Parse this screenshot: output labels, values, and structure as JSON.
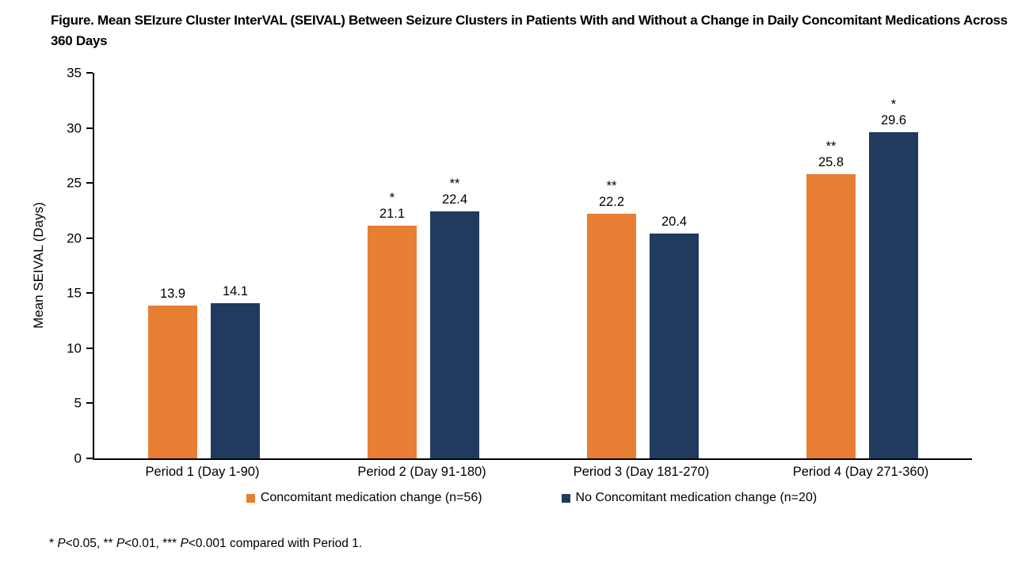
{
  "chart_data": {
    "type": "bar",
    "title": "Figure. Mean SEIzure Cluster InterVAL (SEIVAL) Between Seizure Clusters in Patients With and Without a Change in Daily Concomitant Medications Across 360 Days",
    "categories": [
      "Period 1 (Day 1-90)",
      "Period 2 (Day 91-180)",
      "Period 3 (Day 181-270)",
      "Period 4 (Day 271-360)"
    ],
    "series": [
      {
        "name": "Concomitant medication change (n=56)",
        "color": "#E87E33",
        "values": [
          13.9,
          21.1,
          22.2,
          25.8
        ],
        "annotations": [
          "",
          "*",
          "**",
          "**"
        ]
      },
      {
        "name": "No Concomitant medication change (n=20)",
        "color": "#213A5E",
        "values": [
          14.1,
          22.4,
          20.4,
          29.6
        ],
        "annotations": [
          "",
          "**",
          "",
          "*"
        ]
      }
    ],
    "xlabel": "",
    "ylabel": "Mean SEIVAL (Days)",
    "ylim": [
      0,
      35
    ],
    "ytick_step": 5,
    "grid": false,
    "legend_position": "bottom",
    "value_label_decimals": 1
  },
  "footnote": {
    "segments": [
      {
        "text": "* ",
        "italic": false
      },
      {
        "text": "P",
        "italic": true
      },
      {
        "text": "<0.05, ** ",
        "italic": false
      },
      {
        "text": "P",
        "italic": true
      },
      {
        "text": "<0.01, *** ",
        "italic": false
      },
      {
        "text": "P",
        "italic": true
      },
      {
        "text": "<0.001 compared with Period 1.",
        "italic": false
      }
    ]
  }
}
